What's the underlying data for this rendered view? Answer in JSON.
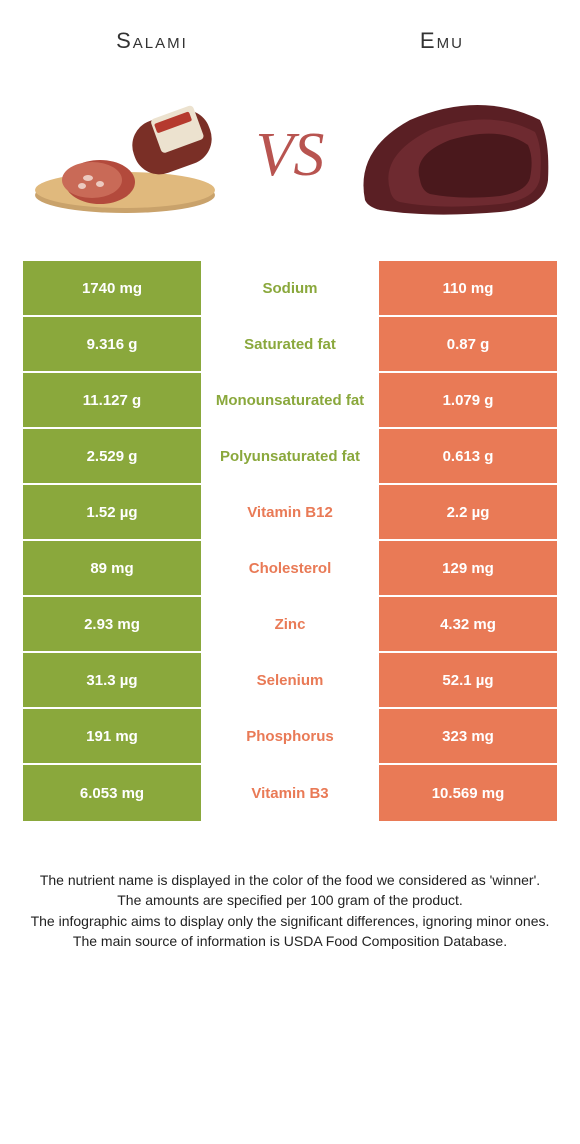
{
  "colors": {
    "salami_bg": "#8aa83c",
    "emu_bg": "#e97a56",
    "salami_label": "#8aa83c",
    "emu_label": "#e97a56",
    "vs_color": "#b85450"
  },
  "titles": {
    "left": "Salami",
    "right": "Emu",
    "vs": "VS"
  },
  "rows": [
    {
      "left": "1740 mg",
      "label": "Sodium",
      "right": "110 mg",
      "winner": "salami"
    },
    {
      "left": "9.316 g",
      "label": "Saturated fat",
      "right": "0.87 g",
      "winner": "salami"
    },
    {
      "left": "11.127 g",
      "label": "Monounsaturated fat",
      "right": "1.079 g",
      "winner": "salami"
    },
    {
      "left": "2.529 g",
      "label": "Polyunsaturated fat",
      "right": "0.613 g",
      "winner": "salami"
    },
    {
      "left": "1.52 µg",
      "label": "Vitamin B12",
      "right": "2.2 µg",
      "winner": "emu"
    },
    {
      "left": "89 mg",
      "label": "Cholesterol",
      "right": "129 mg",
      "winner": "emu"
    },
    {
      "left": "2.93 mg",
      "label": "Zinc",
      "right": "4.32 mg",
      "winner": "emu"
    },
    {
      "left": "31.3 µg",
      "label": "Selenium",
      "right": "52.1 µg",
      "winner": "emu"
    },
    {
      "left": "191 mg",
      "label": "Phosphorus",
      "right": "323 mg",
      "winner": "emu"
    },
    {
      "left": "6.053 mg",
      "label": "Vitamin B3",
      "right": "10.569 mg",
      "winner": "emu"
    }
  ],
  "footnotes": [
    "The nutrient name is displayed in the color of the food we considered as 'winner'.",
    "The amounts are specified per 100 gram of the product.",
    "The infographic aims to display only the significant differences, ignoring minor ones.",
    "The main source of information is USDA Food Composition Database."
  ]
}
